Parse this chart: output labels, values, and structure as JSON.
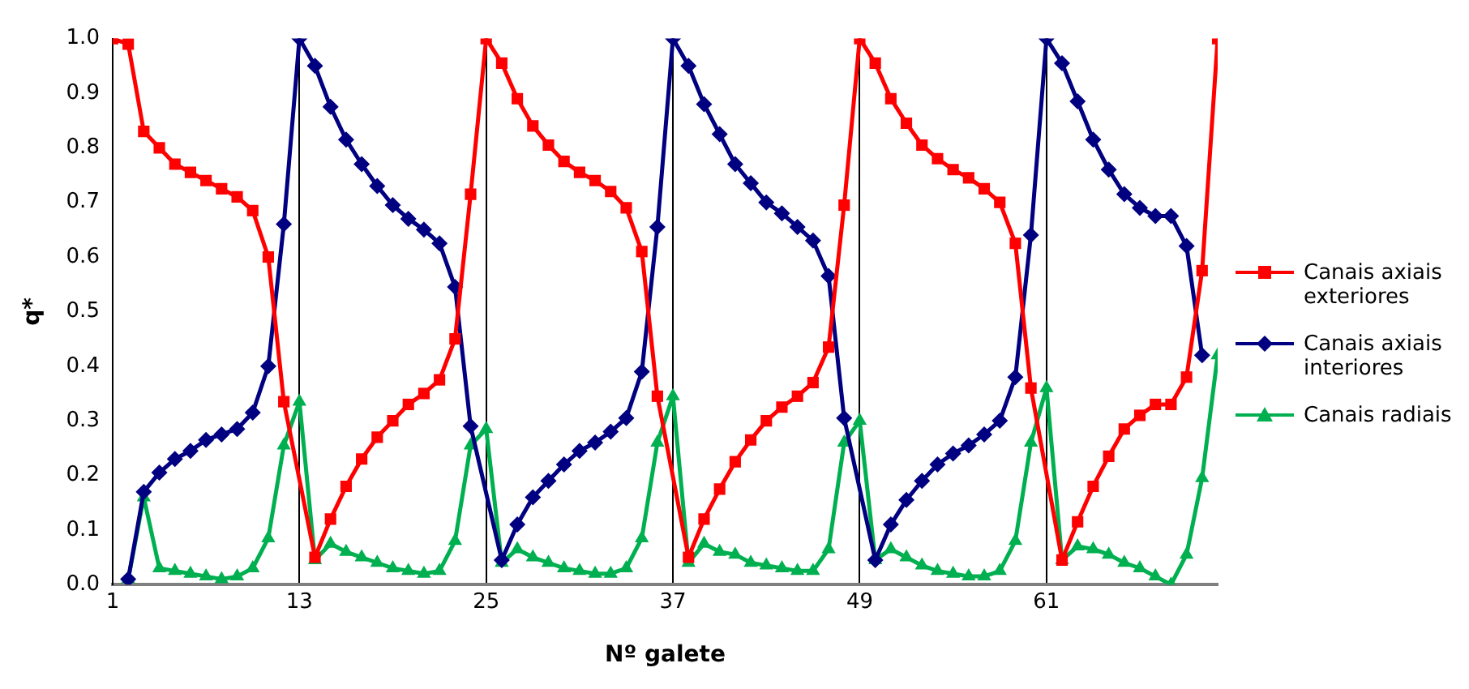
{
  "chart_data": {
    "type": "line",
    "xlabel": "Nº galete",
    "ylabel": "q*",
    "x": [
      1,
      2,
      3,
      4,
      5,
      6,
      7,
      8,
      9,
      10,
      11,
      12,
      13,
      14,
      15,
      16,
      17,
      18,
      19,
      20,
      21,
      22,
      23,
      24,
      25,
      26,
      27,
      28,
      29,
      30,
      31,
      32,
      33,
      34,
      35,
      36,
      37,
      38,
      39,
      40,
      41,
      42,
      43,
      44,
      45,
      46,
      47,
      48,
      49,
      50,
      51,
      52,
      53,
      54,
      55,
      56,
      57,
      58,
      59,
      60,
      61,
      62,
      63,
      64,
      65,
      66,
      67,
      68,
      69,
      70,
      71,
      72
    ],
    "xlim": [
      1,
      72
    ],
    "xticks": [
      1,
      13,
      25,
      37,
      49,
      61
    ],
    "ylim": [
      0,
      1
    ],
    "yticks": [
      {
        "value": 0,
        "label": "0.0"
      },
      {
        "value": 0.1,
        "label": "0.1"
      },
      {
        "value": 0.2,
        "label": "0.2"
      },
      {
        "value": 0.3,
        "label": "0.3"
      },
      {
        "value": 0.4,
        "label": "0.4"
      },
      {
        "value": 0.5,
        "label": "0.5"
      },
      {
        "value": 0.6,
        "label": "0.6"
      },
      {
        "value": 0.7,
        "label": "0.7"
      },
      {
        "value": 0.8,
        "label": "0.8"
      },
      {
        "value": 0.9,
        "label": "0.9"
      },
      {
        "value": 1,
        "label": "1.0"
      }
    ],
    "grid": "x",
    "legend": "right",
    "line_style": "solid",
    "series": [
      {
        "name": "Canais axiais exteriores",
        "color": "#ff0000",
        "marker": "square",
        "values": [
          1.0,
          0.99,
          0.83,
          0.8,
          0.77,
          0.755,
          0.74,
          0.725,
          0.71,
          0.685,
          0.6,
          0.335,
          null,
          0.05,
          0.12,
          0.18,
          0.23,
          0.27,
          0.3,
          0.33,
          0.35,
          0.375,
          0.45,
          0.715,
          1.0,
          0.955,
          0.89,
          0.84,
          0.805,
          0.775,
          0.755,
          0.74,
          0.72,
          0.69,
          0.61,
          0.345,
          null,
          0.05,
          0.12,
          0.175,
          0.225,
          0.265,
          0.3,
          0.325,
          0.345,
          0.37,
          0.435,
          0.695,
          1.0,
          0.955,
          0.89,
          0.845,
          0.805,
          0.78,
          0.76,
          0.745,
          0.725,
          0.7,
          0.625,
          0.36,
          null,
          0.045,
          0.115,
          0.18,
          0.235,
          0.285,
          0.31,
          0.33,
          0.33,
          0.38,
          0.575,
          1.0
        ]
      },
      {
        "name": "Canais axiais interiores",
        "color": "#000080",
        "marker": "diamond",
        "values": [
          null,
          0.01,
          0.17,
          0.205,
          0.23,
          0.245,
          0.265,
          0.275,
          0.285,
          0.315,
          0.4,
          0.66,
          1.0,
          0.95,
          0.875,
          0.815,
          0.77,
          0.73,
          0.695,
          0.67,
          0.65,
          0.625,
          0.545,
          0.29,
          null,
          0.045,
          0.11,
          0.16,
          0.19,
          0.22,
          0.245,
          0.26,
          0.28,
          0.305,
          0.39,
          0.655,
          1.0,
          0.95,
          0.88,
          0.825,
          0.77,
          0.735,
          0.7,
          0.68,
          0.655,
          0.63,
          0.565,
          0.305,
          null,
          0.045,
          0.11,
          0.155,
          0.19,
          0.22,
          0.24,
          0.255,
          0.275,
          0.3,
          0.38,
          0.64,
          1.0,
          0.955,
          0.885,
          0.815,
          0.76,
          0.715,
          0.69,
          0.675,
          0.675,
          0.62,
          0.42,
          null
        ]
      },
      {
        "name": "Canais radiais",
        "color": "#00b050",
        "marker": "triangle",
        "values": [
          null,
          0.01,
          0.16,
          0.03,
          0.025,
          0.02,
          0.015,
          0.01,
          0.015,
          0.03,
          0.085,
          0.255,
          0.335,
          0.045,
          0.075,
          0.06,
          0.05,
          0.04,
          0.03,
          0.025,
          0.02,
          0.025,
          0.08,
          0.255,
          0.285,
          0.04,
          0.065,
          0.05,
          0.04,
          0.03,
          0.025,
          0.02,
          0.02,
          0.03,
          0.085,
          0.26,
          0.345,
          0.04,
          0.075,
          0.06,
          0.055,
          0.04,
          0.035,
          0.03,
          0.025,
          0.025,
          0.065,
          0.26,
          0.3,
          0.045,
          0.065,
          0.05,
          0.035,
          0.025,
          0.02,
          0.015,
          0.015,
          0.025,
          0.08,
          0.26,
          0.36,
          0.045,
          0.07,
          0.065,
          0.055,
          0.04,
          0.03,
          0.015,
          0,
          0.055,
          0.195,
          0.42
        ]
      }
    ]
  }
}
